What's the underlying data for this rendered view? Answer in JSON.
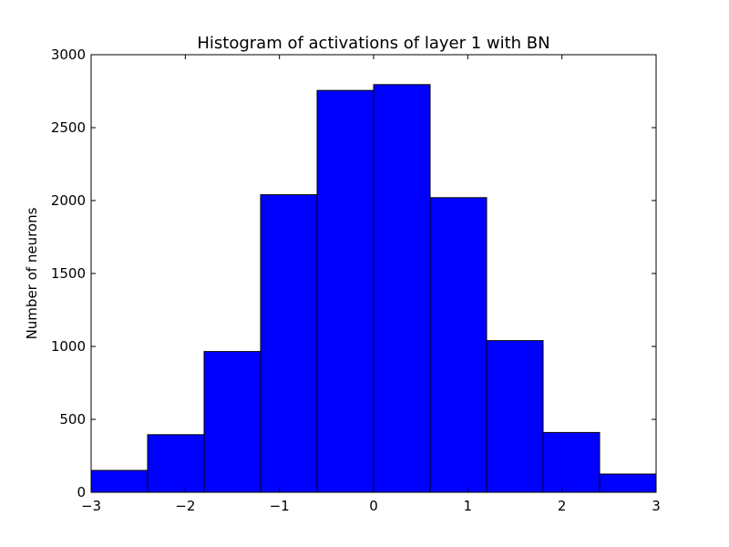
{
  "chart_data": {
    "type": "bar",
    "title": "Histogram of activations of layer 1  with BN",
    "xlabel": "",
    "ylabel": "Number of neurons",
    "bin_edges": [
      -3,
      -2.4,
      -1.8,
      -1.2,
      -0.6,
      0,
      0.6,
      1.2,
      1.8,
      2.4,
      3
    ],
    "values": [
      150,
      395,
      965,
      2040,
      2755,
      2795,
      2020,
      1040,
      410,
      125
    ],
    "xlim": [
      -3,
      3
    ],
    "ylim": [
      0,
      3000
    ],
    "xticks": [
      -3,
      -2,
      -1,
      0,
      1,
      2,
      3
    ],
    "xtick_labels": [
      "−3",
      "−2",
      "−1",
      "0",
      "1",
      "2",
      "3"
    ],
    "yticks": [
      0,
      500,
      1000,
      1500,
      2000,
      2500,
      3000
    ],
    "ytick_labels": [
      "0",
      "500",
      "1000",
      "1500",
      "2000",
      "2500",
      "3000"
    ],
    "bar_color": "#0000ff",
    "edge_color": "#000000",
    "grid": false,
    "legend": "none"
  }
}
